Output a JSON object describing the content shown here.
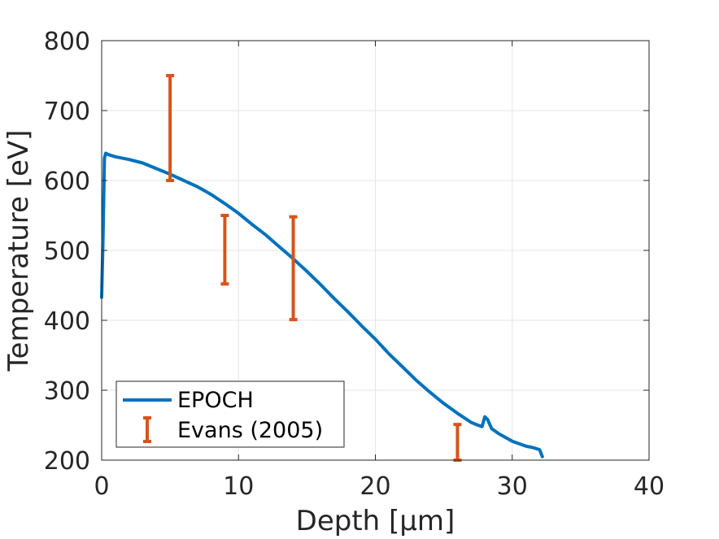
{
  "chart_data": {
    "type": "line",
    "xlabel": "Depth [μm]",
    "ylabel": "Temperature [eV]",
    "xlim": [
      0,
      40
    ],
    "ylim": [
      200,
      800
    ],
    "x_ticks": [
      0,
      10,
      20,
      30,
      40
    ],
    "y_ticks": [
      200,
      300,
      400,
      500,
      600,
      700,
      800
    ],
    "grid": true,
    "legend_placement": "bottom-left",
    "colors": {
      "epoch": "#0072BD",
      "evans": "#D95319",
      "axis": "#262626",
      "grid": "#e6e6e6"
    },
    "series": [
      {
        "name": "EPOCH",
        "kind": "line",
        "x": [
          0.0,
          0.1,
          0.2,
          0.3,
          0.5,
          1,
          2,
          3,
          4,
          5,
          6,
          7,
          8,
          9,
          10,
          11,
          12,
          13,
          14,
          15,
          16,
          17,
          18,
          19,
          20,
          21,
          22,
          23,
          24,
          25,
          26,
          27,
          27.5,
          27.8,
          28.0,
          28.2,
          28.5,
          29,
          30,
          31,
          31.5,
          32.0,
          32.2
        ],
        "y": [
          433,
          520,
          632,
          639,
          637,
          634,
          630,
          625,
          617,
          609,
          600,
          591,
          580,
          567,
          553,
          537,
          522,
          505,
          488,
          470,
          451,
          431,
          412,
          392,
          373,
          352,
          333,
          314,
          297,
          281,
          267,
          254,
          250,
          248,
          262,
          258,
          245,
          238,
          227,
          220,
          218,
          215,
          205
        ]
      },
      {
        "name": "Evans (2005)",
        "kind": "errorbar",
        "points": [
          {
            "x": 5,
            "low": 600,
            "high": 750
          },
          {
            "x": 9,
            "low": 452,
            "high": 550
          },
          {
            "x": 14,
            "low": 401,
            "high": 548
          },
          {
            "x": 26,
            "low": 200,
            "high": 251
          }
        ]
      }
    ]
  }
}
